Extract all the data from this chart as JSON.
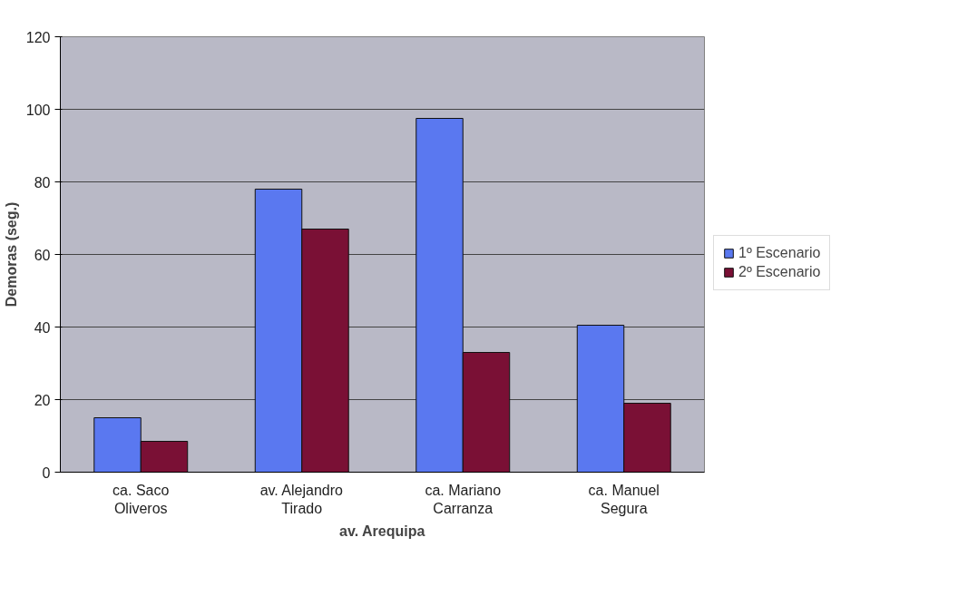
{
  "chart_data": {
    "type": "bar",
    "xlabel": "av. Arequipa",
    "ylabel": "Demoras (seg.)",
    "categories": [
      "ca. Saco\nOliveros",
      "av. Alejandro\nTirado",
      "ca. Mariano\nCarranza",
      "ca. Manuel\nSegura"
    ],
    "series": [
      {
        "name": "1º Escenario",
        "color": "#5a78f0",
        "values": [
          15,
          78,
          97.5,
          40.5
        ]
      },
      {
        "name": "2º Escenario",
        "color": "#7a1035",
        "values": [
          8.5,
          67,
          33,
          19
        ]
      }
    ],
    "ylim": [
      0,
      120
    ],
    "yticks": [
      0,
      20,
      40,
      60,
      80,
      100,
      120
    ],
    "grid": "y",
    "legend": "right"
  }
}
